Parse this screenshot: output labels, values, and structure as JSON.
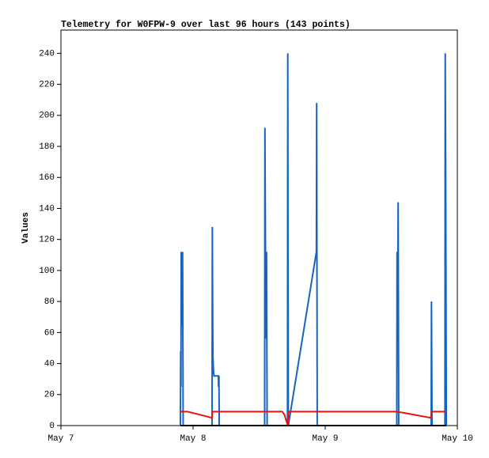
{
  "chart_data": {
    "type": "line",
    "title": "Telemetry for W0FPW-9 over last 96 hours (143 points)",
    "ylabel": "Values",
    "xlim": [
      0,
      72
    ],
    "xticks": [
      {
        "value": 0,
        "label": "May 7"
      },
      {
        "value": 24,
        "label": "May 8"
      },
      {
        "value": 48,
        "label": "May 9"
      },
      {
        "value": 72,
        "label": "May 10"
      }
    ],
    "ylim": [
      0,
      255
    ],
    "yticks": [
      0,
      20,
      40,
      60,
      80,
      100,
      120,
      140,
      160,
      180,
      200,
      220,
      240
    ],
    "series": [
      {
        "color": "#1565c0",
        "x": [
          21.7,
          21.75,
          21.8,
          21.85,
          21.95,
          22.1,
          22.2,
          27.45,
          27.5,
          27.55,
          27.6,
          27.7,
          27.8,
          28.6,
          28.62,
          28.7,
          28.75,
          37.0,
          37.05,
          37.15,
          37.25,
          37.35,
          37.45,
          41.15,
          41.2,
          41.3,
          46.4,
          46.45,
          46.55,
          61.0,
          61.05,
          61.15,
          61.25,
          61.35,
          67.25,
          67.3,
          67.4,
          69.75,
          69.8,
          69.9,
          70.0
        ],
        "values": [
          0,
          48,
          25,
          112,
          64,
          112,
          0,
          0,
          128,
          80,
          45,
          36,
          32,
          32,
          25,
          32,
          0,
          0,
          192,
          112,
          56,
          112,
          0,
          0,
          240,
          0,
          112,
          208,
          0,
          0,
          112,
          72,
          144,
          0,
          0,
          80,
          0,
          0,
          240,
          144,
          0
        ]
      },
      {
        "color": "#e8140c",
        "x": [
          21.7,
          23.0,
          27.45,
          27.5,
          40.2,
          40.6,
          41.2,
          41.35,
          61.0,
          67.2,
          67.3,
          70.0
        ],
        "values": [
          9,
          9,
          5,
          9,
          9,
          7,
          0,
          9,
          9,
          5,
          9,
          9
        ]
      },
      {
        "color": "#000000",
        "x": [
          21.7,
          70.0
        ],
        "values": [
          0,
          0
        ]
      }
    ]
  }
}
